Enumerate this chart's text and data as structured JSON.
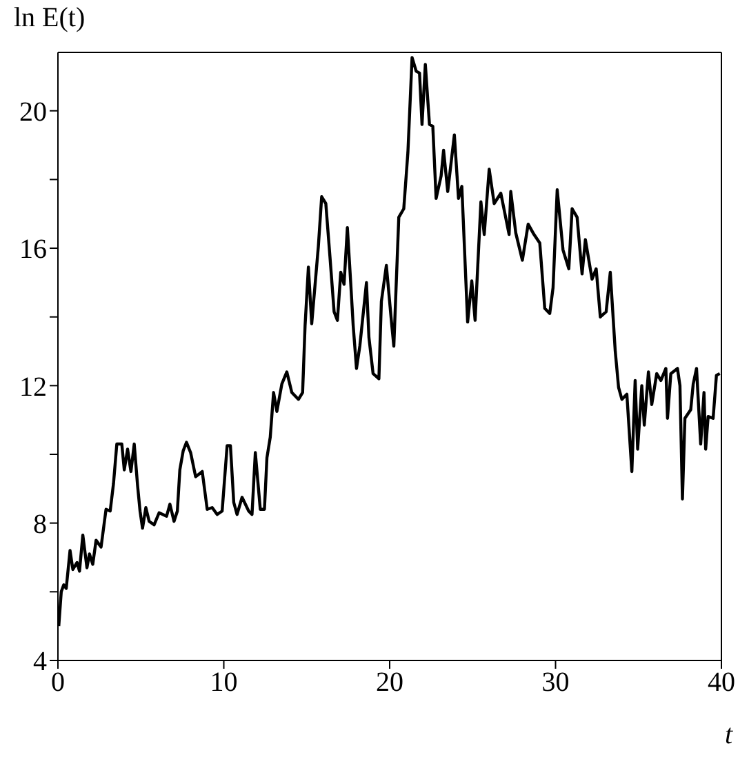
{
  "chart_data": {
    "type": "line",
    "ylabel": "ln E(t)",
    "xlabel": "t",
    "xlim": [
      0,
      40
    ],
    "xticks": [
      0,
      10,
      20,
      30,
      40
    ],
    "ylim": [
      4,
      21.7
    ],
    "yticks": [
      4,
      {
        "value": 6,
        "label": null
      },
      8,
      {
        "value": 10,
        "label": null
      },
      12,
      {
        "value": 14,
        "label": null
      },
      16,
      {
        "value": 18,
        "label": null
      },
      20
    ],
    "grid": false,
    "legend": false,
    "marker": "none",
    "line_style": "solid",
    "series": [
      {
        "color": "#000000",
        "x": [
          0.05,
          0.2,
          0.35,
          0.5,
          0.73,
          0.9,
          1.15,
          1.3,
          1.5,
          1.75,
          1.9,
          2.1,
          2.3,
          2.6,
          2.9,
          3.15,
          3.35,
          3.55,
          3.85,
          4.0,
          4.2,
          4.4,
          4.6,
          4.8,
          4.95,
          5.1,
          5.3,
          5.5,
          5.8,
          6.1,
          6.55,
          6.75,
          7.0,
          7.2,
          7.35,
          7.55,
          7.75,
          8.0,
          8.3,
          8.7,
          9.0,
          9.3,
          9.6,
          9.9,
          10.2,
          10.4,
          10.6,
          10.8,
          11.1,
          11.5,
          11.7,
          11.9,
          12.2,
          12.45,
          12.6,
          12.8,
          13.0,
          13.2,
          13.5,
          13.8,
          14.1,
          14.5,
          14.75,
          14.9,
          15.1,
          15.3,
          15.7,
          15.9,
          16.15,
          16.4,
          16.65,
          16.85,
          17.05,
          17.25,
          17.45,
          17.65,
          17.8,
          18.0,
          18.2,
          18.6,
          18.75,
          19.0,
          19.35,
          19.5,
          19.8,
          20.1,
          20.25,
          20.55,
          20.85,
          21.1,
          21.35,
          21.6,
          21.8,
          21.95,
          22.15,
          22.4,
          22.6,
          22.8,
          23.1,
          23.25,
          23.5,
          23.9,
          24.15,
          24.35,
          24.7,
          24.95,
          25.15,
          25.5,
          25.7,
          26.0,
          26.3,
          26.7,
          27.2,
          27.3,
          27.6,
          28.0,
          28.35,
          28.7,
          29.05,
          29.35,
          29.65,
          29.85,
          30.1,
          30.45,
          30.8,
          31.0,
          31.3,
          31.6,
          31.8,
          32.2,
          32.45,
          32.7,
          33.05,
          33.3,
          33.6,
          33.8,
          34.0,
          34.3,
          34.6,
          34.8,
          34.95,
          35.2,
          35.35,
          35.6,
          35.8,
          36.1,
          36.35,
          36.65,
          36.75,
          36.95,
          37.35,
          37.5,
          37.65,
          37.8,
          38.15,
          38.3,
          38.5,
          38.75,
          38.95,
          39.05,
          39.2,
          39.5,
          39.7,
          39.9
        ],
        "values": [
          5.0,
          6.0,
          6.2,
          6.1,
          7.2,
          6.65,
          6.85,
          6.6,
          7.65,
          6.7,
          7.1,
          6.8,
          7.5,
          7.3,
          8.4,
          8.35,
          9.15,
          10.3,
          10.3,
          9.55,
          10.15,
          9.5,
          10.3,
          9.1,
          8.35,
          7.85,
          8.45,
          8.05,
          7.95,
          8.3,
          8.2,
          8.55,
          8.05,
          8.35,
          9.55,
          10.1,
          10.35,
          10.05,
          9.35,
          9.5,
          8.4,
          8.45,
          8.25,
          8.35,
          10.25,
          10.25,
          8.6,
          8.25,
          8.75,
          8.35,
          8.25,
          10.05,
          8.4,
          8.4,
          9.9,
          10.5,
          11.8,
          11.25,
          12.05,
          12.4,
          11.8,
          11.6,
          11.8,
          13.75,
          15.45,
          13.8,
          16.05,
          17.5,
          17.3,
          15.75,
          14.15,
          13.9,
          15.3,
          14.95,
          16.6,
          15.0,
          13.75,
          12.5,
          13.15,
          15.0,
          13.4,
          12.35,
          12.2,
          14.45,
          15.5,
          13.9,
          13.15,
          16.9,
          17.15,
          18.8,
          21.55,
          21.15,
          21.1,
          19.6,
          21.35,
          19.6,
          19.55,
          17.45,
          18.1,
          18.85,
          17.65,
          19.3,
          17.45,
          17.8,
          13.85,
          15.05,
          13.9,
          17.35,
          16.4,
          18.3,
          17.3,
          17.6,
          16.4,
          17.65,
          16.45,
          15.65,
          16.7,
          16.4,
          16.15,
          14.25,
          14.1,
          14.85,
          17.7,
          15.95,
          15.4,
          17.15,
          16.9,
          15.25,
          16.25,
          15.1,
          15.4,
          14.0,
          14.15,
          15.3,
          13.0,
          11.95,
          11.6,
          11.75,
          9.5,
          12.15,
          10.15,
          12.0,
          10.85,
          12.4,
          11.45,
          12.35,
          12.15,
          12.5,
          11.05,
          12.35,
          12.5,
          12.0,
          8.7,
          11.05,
          11.3,
          12.05,
          12.5,
          10.3,
          11.8,
          10.15,
          11.1,
          11.05,
          12.3,
          12.35
        ]
      }
    ]
  }
}
